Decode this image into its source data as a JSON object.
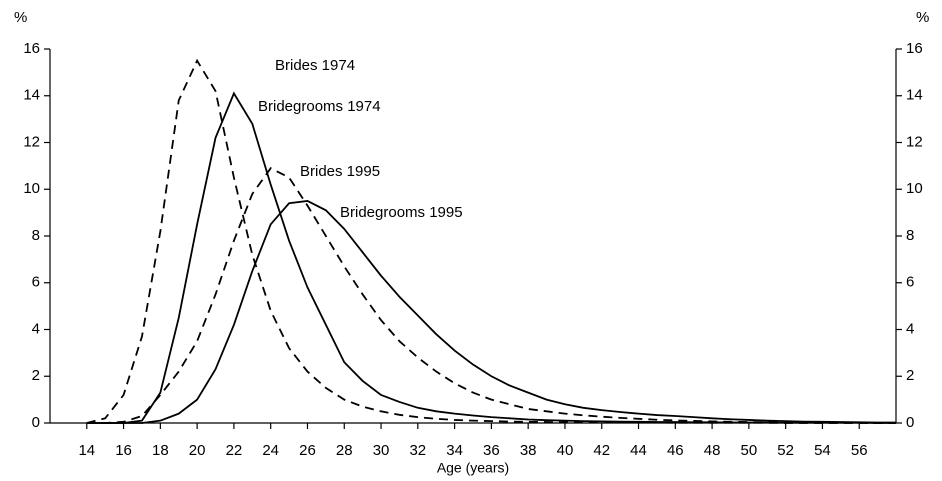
{
  "chart_data": {
    "type": "line",
    "x_label": "Age (years)",
    "y_label": "%",
    "y2_label": "%",
    "x": [
      14,
      15,
      16,
      17,
      18,
      19,
      20,
      21,
      22,
      23,
      24,
      25,
      26,
      27,
      28,
      29,
      30,
      31,
      32,
      33,
      34,
      35,
      36,
      37,
      38,
      39,
      40,
      41,
      42,
      43,
      44,
      45,
      46,
      47,
      48,
      49,
      50,
      51,
      52,
      53,
      54,
      55,
      56,
      57,
      58
    ],
    "series": [
      {
        "name": "Brides 1974",
        "color": "#000000",
        "style": "dashed",
        "values": [
          0,
          0.2,
          1.2,
          3.7,
          8.2,
          13.8,
          15.5,
          14.2,
          10.5,
          7.2,
          4.8,
          3.2,
          2.2,
          1.5,
          1.0,
          0.7,
          0.5,
          0.35,
          0.25,
          0.18,
          0.13,
          0.1,
          0.08,
          0.06,
          0.05,
          0.04,
          0.03,
          0.03,
          0.02,
          0.02,
          0.02,
          0.02,
          0.01,
          0.01,
          0.01,
          0.01,
          0.01,
          0.01,
          0,
          0,
          0,
          0,
          0,
          0,
          0
        ]
      },
      {
        "name": "Bridegrooms 1974",
        "color": "#000000",
        "style": "solid",
        "values": [
          0,
          0,
          0,
          0.1,
          1.3,
          4.5,
          8.5,
          12.2,
          14.1,
          12.8,
          10.2,
          7.8,
          5.8,
          4.2,
          2.6,
          1.8,
          1.2,
          0.9,
          0.65,
          0.5,
          0.4,
          0.32,
          0.25,
          0.2,
          0.15,
          0.12,
          0.1,
          0.08,
          0.07,
          0.06,
          0.05,
          0.04,
          0.04,
          0.03,
          0.03,
          0.02,
          0.02,
          0.02,
          0.01,
          0.01,
          0.01,
          0.01,
          0.01,
          0,
          0
        ]
      },
      {
        "name": "Brides 1995",
        "color": "#000000",
        "style": "dashed",
        "values": [
          0,
          0,
          0.05,
          0.3,
          1.2,
          2.2,
          3.5,
          5.5,
          7.8,
          9.8,
          10.9,
          10.5,
          9.3,
          8.0,
          6.7,
          5.5,
          4.4,
          3.5,
          2.8,
          2.2,
          1.7,
          1.3,
          1.0,
          0.8,
          0.6,
          0.5,
          0.4,
          0.33,
          0.27,
          0.22,
          0.18,
          0.14,
          0.11,
          0.09,
          0.07,
          0.05,
          0.04,
          0.03,
          0.02,
          0.02,
          0.01,
          0.01,
          0.01,
          0,
          0
        ]
      },
      {
        "name": "Bridegrooms 1995",
        "color": "#000000",
        "style": "solid",
        "values": [
          0,
          0,
          0,
          0,
          0.1,
          0.4,
          1.0,
          2.3,
          4.2,
          6.5,
          8.5,
          9.4,
          9.5,
          9.1,
          8.3,
          7.3,
          6.3,
          5.4,
          4.6,
          3.8,
          3.1,
          2.5,
          2.0,
          1.6,
          1.3,
          1.0,
          0.8,
          0.65,
          0.55,
          0.47,
          0.4,
          0.34,
          0.3,
          0.25,
          0.2,
          0.16,
          0.13,
          0.1,
          0.08,
          0.06,
          0.05,
          0.04,
          0.03,
          0.02,
          0.02
        ]
      }
    ],
    "xlim": [
      12,
      58
    ],
    "xticks": [
      14,
      16,
      18,
      20,
      22,
      24,
      26,
      28,
      30,
      32,
      34,
      36,
      38,
      40,
      42,
      44,
      46,
      48,
      50,
      52,
      54,
      56
    ],
    "ylim": [
      0,
      16
    ],
    "yticks": [
      0,
      2,
      4,
      6,
      8,
      10,
      12,
      14,
      16
    ],
    "y2lim": [
      0,
      16
    ],
    "y2ticks": [
      0,
      2,
      4,
      6,
      8,
      10,
      12,
      14,
      16
    ],
    "grid": false
  }
}
